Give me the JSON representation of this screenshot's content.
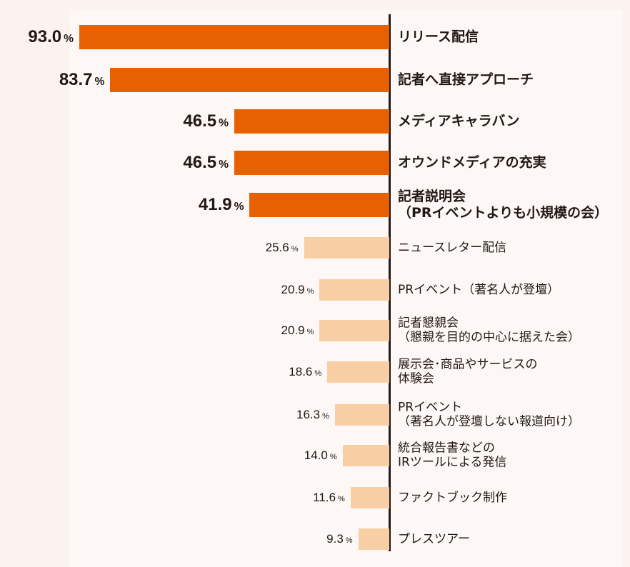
{
  "chart_data": {
    "type": "bar",
    "orientation": "horizontal",
    "unit": "%",
    "xlim": [
      0,
      100
    ],
    "grid": false,
    "colors": {
      "highlight": "#e86100",
      "normal": "#f8cfa5",
      "axis": "#231815"
    },
    "highlight_count": 5,
    "categories": [
      "リリース配信",
      "記者へ直接アプローチ",
      "メディアキャラバン",
      "オウンドメディアの充実",
      "記者説明会\n（PRイベントよりも小規模の会）",
      "ニュースレター配信",
      "PRイベント（著名人が登壇）",
      "記者懇親会\n（懇親を目的の中心に据えた会）",
      "展示会･商品やサービスの\n体験会",
      "PRイベント\n（著名人が登壇しない報道向け）",
      "統合報告書などの\nIRツールによる発信",
      "ファクトブック制作",
      "プレスツアー"
    ],
    "values": [
      93.0,
      83.7,
      46.5,
      46.5,
      41.9,
      25.6,
      20.9,
      20.9,
      18.6,
      16.3,
      14.0,
      11.6,
      9.3
    ],
    "value_labels": [
      "93.0",
      "83.7",
      "46.5",
      "46.5",
      "41.9",
      "25.6",
      "20.9",
      "20.9",
      "18.6",
      "16.3",
      "14.0",
      "11.6",
      "9.3"
    ],
    "percent_sign": "%"
  }
}
